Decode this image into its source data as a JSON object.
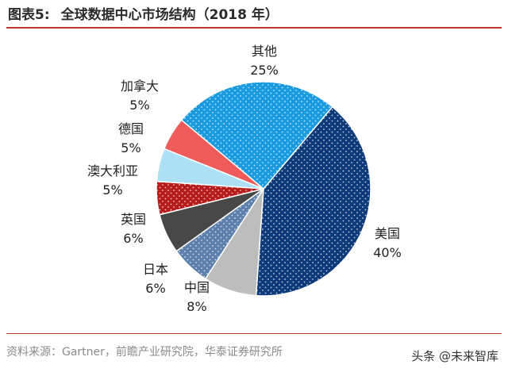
{
  "header": {
    "figure_number": "图表5:",
    "title": "全球数据中心市场结构（2018 年）"
  },
  "footer": {
    "source": "资料来源：Gartner，前瞻产业研究院，华泰证券研究所",
    "watermark": "头条 @未来智库"
  },
  "chart_data": {
    "type": "pie",
    "title": "全球数据中心市场结构（2018 年）",
    "slices": [
      {
        "label": "美国",
        "value": 40,
        "value_label": "40%",
        "color": "#0e3a7a",
        "pattern": "dots"
      },
      {
        "label": "中国",
        "value": 8,
        "value_label": "8%",
        "color": "#bdbdbd",
        "pattern": "none"
      },
      {
        "label": "日本",
        "value": 6,
        "value_label": "6%",
        "color": "#5d80ad",
        "pattern": "dots"
      },
      {
        "label": "英国",
        "value": 6,
        "value_label": "6%",
        "color": "#474747",
        "pattern": "none"
      },
      {
        "label": "澳大利亚",
        "value": 5,
        "value_label": "5%",
        "color": "#b71c1c",
        "pattern": "dots"
      },
      {
        "label": "德国",
        "value": 5,
        "value_label": "5%",
        "color": "#aee0f5",
        "pattern": "none"
      },
      {
        "label": "加拿大",
        "value": 5,
        "value_label": "5%",
        "color": "#ef5a5a",
        "pattern": "none"
      },
      {
        "label": "其他",
        "value": 25,
        "value_label": "25%",
        "color": "#1a9be0",
        "pattern": "dots"
      }
    ],
    "start_angle_deg": 40,
    "direction": "clockwise",
    "legend": "none",
    "labels": "outside"
  }
}
